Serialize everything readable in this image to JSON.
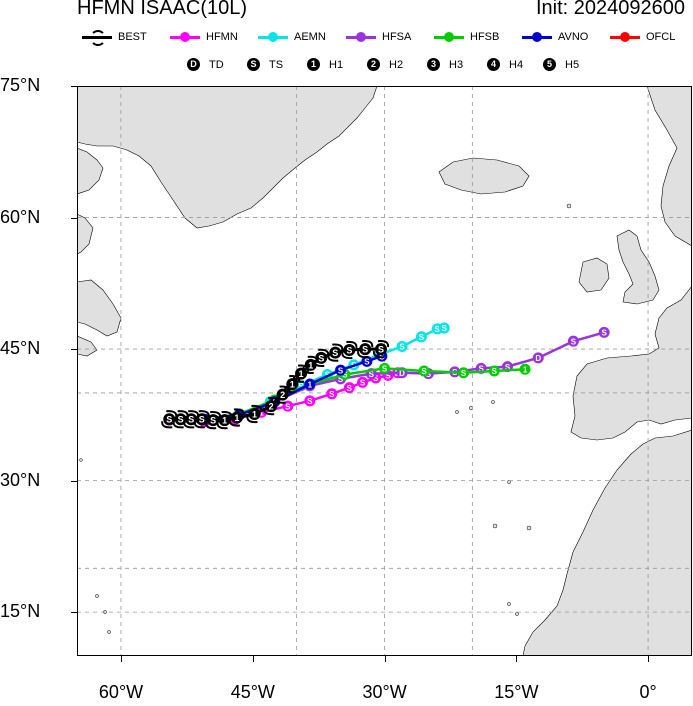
{
  "header": {
    "title": "HFMN ISAAC(10L)",
    "init": "Init: 2024092600"
  },
  "legend": {
    "models": [
      {
        "key": "best",
        "label": "BEST",
        "color": "#000000"
      },
      {
        "key": "hfmn",
        "label": "HFMN",
        "color": "#ff00ff"
      },
      {
        "key": "aemn",
        "label": "AEMN",
        "color": "#00e5e5"
      },
      {
        "key": "hfsa",
        "label": "HFSA",
        "color": "#9933dd"
      },
      {
        "key": "hfsb",
        "label": "HFSB",
        "color": "#00cc00"
      },
      {
        "key": "avno",
        "label": "AVNO",
        "color": "#0000cc"
      },
      {
        "key": "ofcl",
        "label": "OFCL",
        "color": "#ff0000"
      }
    ],
    "categories": [
      {
        "mark": "D",
        "label": "TD"
      },
      {
        "mark": "S",
        "label": "TS"
      },
      {
        "mark": "1",
        "label": "H1"
      },
      {
        "mark": "2",
        "label": "H2"
      },
      {
        "mark": "3",
        "label": "H3"
      },
      {
        "mark": "4",
        "label": "H4"
      },
      {
        "mark": "5",
        "label": "H5"
      }
    ]
  },
  "map": {
    "lon_range": [
      -65,
      5
    ],
    "lat_range": [
      10,
      75
    ],
    "lat_ticks": [
      {
        "value": 75,
        "label": "75°N"
      },
      {
        "value": 60,
        "label": "60°N"
      },
      {
        "value": 45,
        "label": "45°N"
      },
      {
        "value": 30,
        "label": "30°N"
      },
      {
        "value": 15,
        "label": "15°N"
      }
    ],
    "lon_ticks": [
      {
        "value": -60,
        "label": "60°W"
      },
      {
        "value": -45,
        "label": "45°W"
      },
      {
        "value": -30,
        "label": "30°W"
      },
      {
        "value": -15,
        "label": "15°W"
      },
      {
        "value": 0,
        "label": "0°"
      }
    ],
    "grid_lats": [
      15,
      20,
      30,
      40,
      45,
      60
    ],
    "grid_lons": [
      -60,
      -40,
      -30,
      -20,
      0
    ],
    "land_color": "#e0e0e0",
    "ocean_color": "#ffffff"
  },
  "tracks": [
    {
      "key": "best",
      "color": "#000000",
      "points": [
        {
          "lon": -54.5,
          "lat": 37.0,
          "mark": "S"
        },
        {
          "lon": -53.2,
          "lat": 37.0,
          "mark": "S"
        },
        {
          "lon": -52.0,
          "lat": 37.0,
          "mark": "S"
        },
        {
          "lon": -50.8,
          "lat": 37.0,
          "mark": "S"
        },
        {
          "lon": -49.5,
          "lat": 36.9,
          "mark": "S"
        },
        {
          "lon": -48.2,
          "lat": 36.9,
          "mark": "1"
        },
        {
          "lon": -46.8,
          "lat": 37.2,
          "mark": "1"
        },
        {
          "lon": -44.8,
          "lat": 37.6,
          "mark": "1"
        },
        {
          "lon": -42.9,
          "lat": 38.5,
          "mark": "2"
        },
        {
          "lon": -41.6,
          "lat": 39.8,
          "mark": "2"
        },
        {
          "lon": -40.5,
          "lat": 41.0,
          "mark": "1"
        },
        {
          "lon": -39.5,
          "lat": 42.2,
          "mark": "1"
        },
        {
          "lon": -38.4,
          "lat": 43.2,
          "mark": "1"
        },
        {
          "lon": -37.2,
          "lat": 44.0,
          "mark": "S"
        },
        {
          "lon": -35.6,
          "lat": 44.6,
          "mark": "S"
        },
        {
          "lon": -34.0,
          "lat": 44.9,
          "mark": "S"
        },
        {
          "lon": -32.2,
          "lat": 45.0,
          "mark": "S"
        },
        {
          "lon": -30.4,
          "lat": 45.0,
          "mark": "S"
        }
      ]
    },
    {
      "key": "hfmn",
      "color": "#ff00ff",
      "points": [
        {
          "lon": -54.5,
          "lat": 36.9,
          "mark": "S"
        },
        {
          "lon": -50.5,
          "lat": 36.7,
          "mark": "S"
        },
        {
          "lon": -47.0,
          "lat": 37.0,
          "mark": "1"
        },
        {
          "lon": -44.0,
          "lat": 37.8,
          "mark": "1"
        },
        {
          "lon": -41.0,
          "lat": 38.5,
          "mark": "S"
        },
        {
          "lon": -38.5,
          "lat": 39.1,
          "mark": "S"
        },
        {
          "lon": -36.0,
          "lat": 39.9,
          "mark": "S"
        },
        {
          "lon": -34.0,
          "lat": 40.6,
          "mark": "S"
        },
        {
          "lon": -32.5,
          "lat": 41.2,
          "mark": "S"
        },
        {
          "lon": -31.0,
          "lat": 41.7,
          "mark": "S"
        },
        {
          "lon": -29.6,
          "lat": 42.0,
          "mark": "S"
        },
        {
          "lon": -28.5,
          "lat": 42.3,
          "mark": "D"
        }
      ]
    },
    {
      "key": "aemn",
      "color": "#00e5e5",
      "points": [
        {
          "lon": -54.5,
          "lat": 37.0,
          "mark": "S"
        },
        {
          "lon": -50.5,
          "lat": 37.0,
          "mark": "S"
        },
        {
          "lon": -46.5,
          "lat": 37.6,
          "mark": "1"
        },
        {
          "lon": -43.0,
          "lat": 39.0,
          "mark": "1"
        },
        {
          "lon": -39.5,
          "lat": 40.8,
          "mark": "S"
        },
        {
          "lon": -36.5,
          "lat": 42.1,
          "mark": "S"
        },
        {
          "lon": -33.5,
          "lat": 43.2,
          "mark": "S"
        },
        {
          "lon": -30.5,
          "lat": 44.4,
          "mark": "S"
        },
        {
          "lon": -28.0,
          "lat": 45.3,
          "mark": "S"
        },
        {
          "lon": -25.8,
          "lat": 46.4,
          "mark": "S"
        },
        {
          "lon": -24.0,
          "lat": 47.3,
          "mark": "S"
        },
        {
          "lon": -23.2,
          "lat": 47.4,
          "mark": "S"
        }
      ]
    },
    {
      "key": "hfsa",
      "color": "#9933dd",
      "points": [
        {
          "lon": -54.5,
          "lat": 37.0,
          "mark": "S"
        },
        {
          "lon": -50.5,
          "lat": 36.9,
          "mark": "S"
        },
        {
          "lon": -46.5,
          "lat": 37.5,
          "mark": "1"
        },
        {
          "lon": -42.5,
          "lat": 39.0,
          "mark": "2"
        },
        {
          "lon": -38.5,
          "lat": 40.8,
          "mark": "1"
        },
        {
          "lon": -35.0,
          "lat": 41.6,
          "mark": "S"
        },
        {
          "lon": -31.5,
          "lat": 42.2,
          "mark": "S"
        },
        {
          "lon": -28.0,
          "lat": 42.3,
          "mark": "D"
        },
        {
          "lon": -25.0,
          "lat": 42.2,
          "mark": "S"
        },
        {
          "lon": -22.0,
          "lat": 42.4,
          "mark": "S"
        },
        {
          "lon": -19.0,
          "lat": 42.8,
          "mark": "S"
        },
        {
          "lon": -16.0,
          "lat": 43.0,
          "mark": "S"
        },
        {
          "lon": -12.5,
          "lat": 44.0,
          "mark": "D"
        },
        {
          "lon": -8.5,
          "lat": 45.9,
          "mark": "S"
        },
        {
          "lon": -5.0,
          "lat": 46.9,
          "mark": "S"
        }
      ]
    },
    {
      "key": "hfsb",
      "color": "#00cc00",
      "points": [
        {
          "lon": -54.5,
          "lat": 37.0,
          "mark": "S"
        },
        {
          "lon": -50.5,
          "lat": 37.0,
          "mark": "S"
        },
        {
          "lon": -46.5,
          "lat": 37.6,
          "mark": "1"
        },
        {
          "lon": -42.5,
          "lat": 39.2,
          "mark": "2"
        },
        {
          "lon": -38.5,
          "lat": 41.0,
          "mark": "1"
        },
        {
          "lon": -34.5,
          "lat": 42.1,
          "mark": "S"
        },
        {
          "lon": -30.0,
          "lat": 42.8,
          "mark": "S"
        },
        {
          "lon": -25.5,
          "lat": 42.5,
          "mark": "S"
        },
        {
          "lon": -21.0,
          "lat": 42.3,
          "mark": "S"
        },
        {
          "lon": -17.5,
          "lat": 42.5,
          "mark": "S"
        },
        {
          "lon": -14.0,
          "lat": 42.7,
          "mark": "1"
        }
      ]
    },
    {
      "key": "avno",
      "color": "#0000cc",
      "points": [
        {
          "lon": -54.5,
          "lat": 37.0,
          "mark": "S"
        },
        {
          "lon": -50.5,
          "lat": 37.0,
          "mark": "S"
        },
        {
          "lon": -46.5,
          "lat": 37.5,
          "mark": "1"
        },
        {
          "lon": -42.5,
          "lat": 39.0,
          "mark": "2"
        },
        {
          "lon": -38.5,
          "lat": 41.0,
          "mark": "1"
        },
        {
          "lon": -35.0,
          "lat": 42.6,
          "mark": "S"
        },
        {
          "lon": -32.0,
          "lat": 43.6,
          "mark": "S"
        },
        {
          "lon": -30.3,
          "lat": 44.2,
          "mark": "S"
        }
      ]
    }
  ]
}
